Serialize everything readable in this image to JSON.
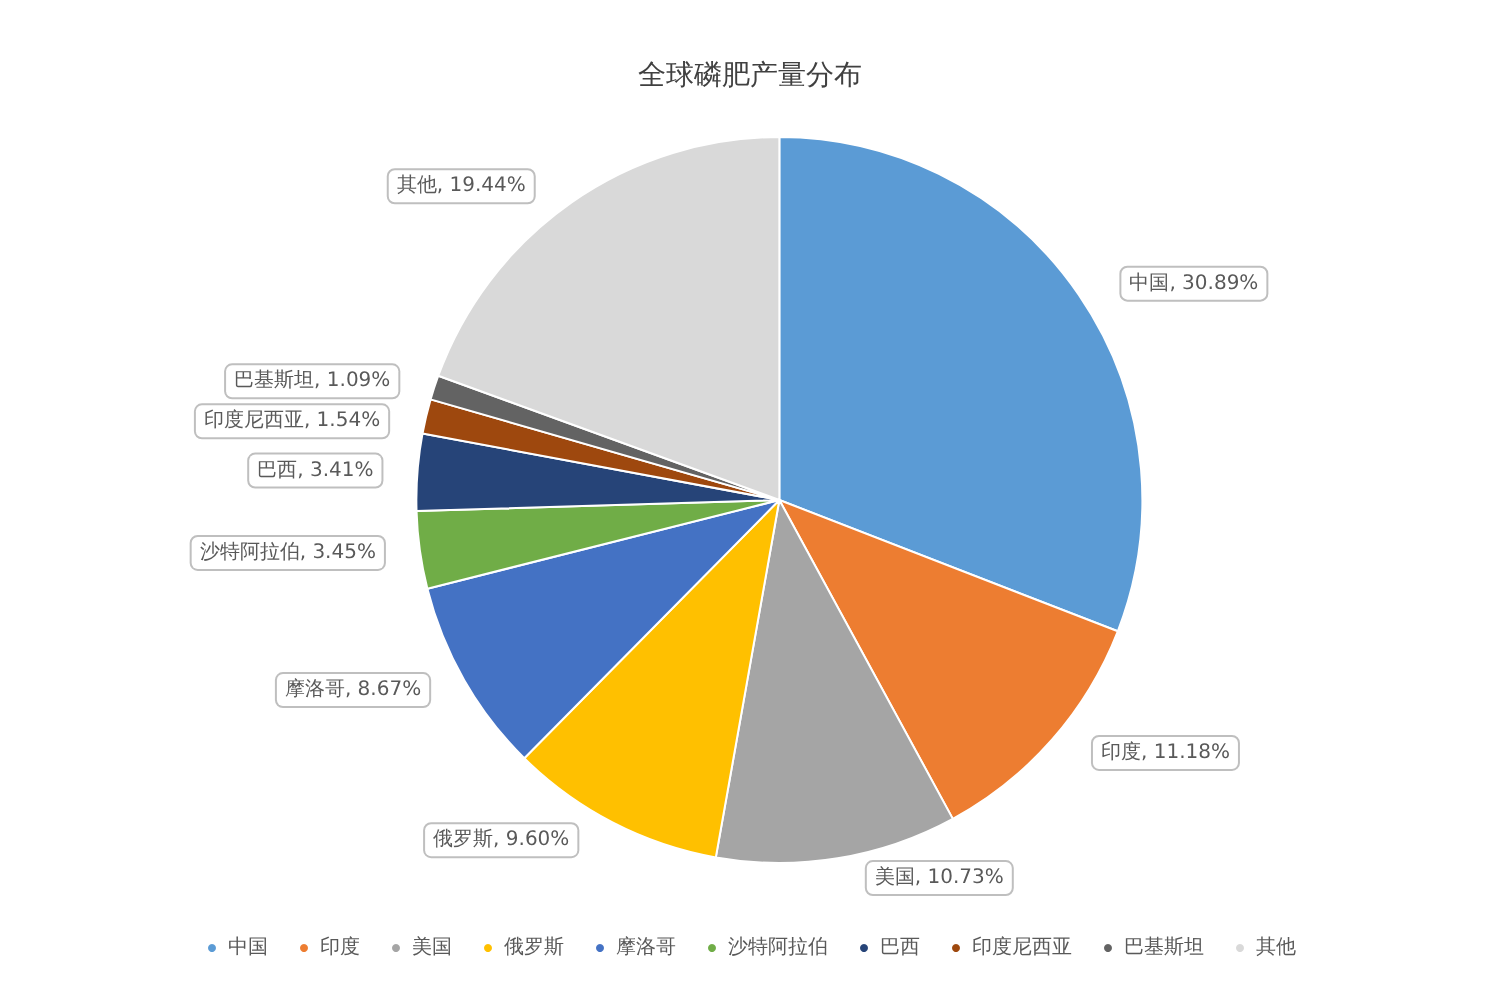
{
  "chart_data": {
    "type": "pie",
    "title": "全球磷肥产量分布",
    "categories": [
      "中国",
      "印度",
      "美国",
      "俄罗斯",
      "摩洛哥",
      "沙特阿拉伯",
      "巴西",
      "印度尼西亚",
      "巴基斯坦",
      "其他"
    ],
    "values": [
      30.89,
      11.18,
      10.73,
      9.6,
      8.67,
      3.45,
      3.41,
      1.54,
      1.09,
      19.44
    ],
    "value_labels": [
      "中国, 30.89%",
      "印度, 11.18%",
      "美国, 10.73%",
      "俄罗斯, 9.60%",
      "摩洛哥, 8.67%",
      "沙特阿拉伯, 3.45%",
      "巴西, 3.41%",
      "印度尼西亚, 1.54%",
      "巴基斯坦, 1.09%",
      "其他, 19.44%"
    ],
    "colors": [
      "#5b9bd5",
      "#ed7d31",
      "#a5a5a5",
      "#ffc000",
      "#4472c4",
      "#70ad47",
      "#264478",
      "#9e480e",
      "#636363",
      "#d9d9d9"
    ],
    "legend": "bottom"
  }
}
